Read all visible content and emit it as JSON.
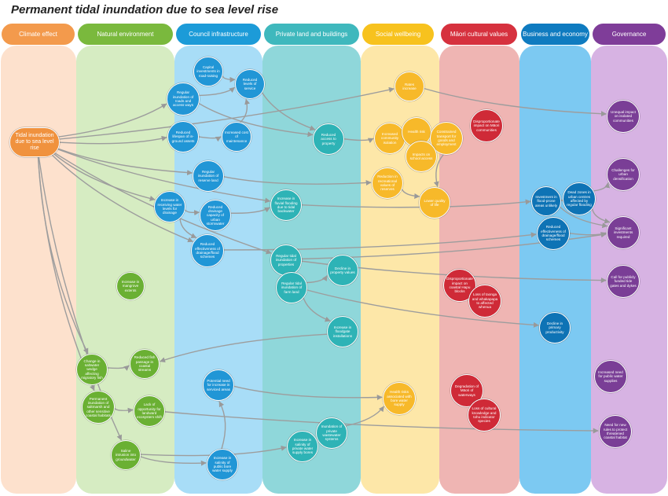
{
  "title": "Permanent tidal inundation due to sea level rise",
  "columns": [
    {
      "key": "climate",
      "label": "Climate effect",
      "header_color": "#f39a4c",
      "band_color": "#fde1cd"
    },
    {
      "key": "natural",
      "label": "Natural environment",
      "header_color": "#7ab93d",
      "band_color": "#d6ecc2"
    },
    {
      "key": "council",
      "label": "Council infrastructure",
      "header_color": "#1c9bd8",
      "band_color": "#a8ddf7"
    },
    {
      "key": "private",
      "label": "Private land and buildings",
      "header_color": "#3fb8bd",
      "band_color": "#8fd7da"
    },
    {
      "key": "social",
      "label": "Social wellbeing",
      "header_color": "#f7c21e",
      "band_color": "#fde7a8"
    },
    {
      "key": "maori",
      "label": "Māori cultural values",
      "header_color": "#d6313e",
      "band_color": "#efb5b3"
    },
    {
      "key": "business",
      "label": "Business and economy",
      "header_color": "#0f7bc0",
      "band_color": "#7cc9f2"
    },
    {
      "key": "governance",
      "label": "Governance",
      "header_color": "#7f3d99",
      "band_color": "#d7b3e3"
    }
  ],
  "node_colors": {
    "climate": "#f0923e",
    "natural": "#6ab033",
    "council": "#2196d6",
    "private": "#2eb3b6",
    "social": "#f7b92a",
    "maori": "#cf2a37",
    "business": "#0e73b5",
    "governance": "#7a3e96"
  },
  "nodes": [
    {
      "id": "tidal",
      "col": "climate",
      "label": "Tidal inundation due to sea level rise"
    },
    {
      "id": "mangrove",
      "col": "natural",
      "label": "Increase in mangrove extents"
    },
    {
      "id": "saltwedge",
      "col": "natural",
      "label": "Change in saltwater wedge affecting migratory fish"
    },
    {
      "id": "fishpassage",
      "col": "natural",
      "label": "Reduced fish passage in coastal streams"
    },
    {
      "id": "saltmarsh",
      "col": "natural",
      "label": "Permanent inundation of saltmarsh and other sensitive coastal habitats"
    },
    {
      "id": "landward",
      "col": "natural",
      "label": "Lack of opportunity for landward ecosystem shift"
    },
    {
      "id": "salineintrusion",
      "col": "natural",
      "label": "Saline intrusion into groundwater"
    },
    {
      "id": "capital",
      "col": "council",
      "label": "Capital investments in road-raising"
    },
    {
      "id": "roads",
      "col": "council",
      "label": "Regular inundation of roads and access ways"
    },
    {
      "id": "levelsservice",
      "col": "council",
      "label": "Reduced levels of service"
    },
    {
      "id": "lifespan",
      "col": "council",
      "label": "Reduced lifespan of in-ground assets"
    },
    {
      "id": "maintenance",
      "col": "council",
      "label": "Increased cost of maintenance"
    },
    {
      "id": "reserve",
      "col": "council",
      "label": "Regular inundation of reserve land"
    },
    {
      "id": "receiving",
      "col": "council",
      "label": "Increase in receiving water levels for drainage"
    },
    {
      "id": "drainagecap",
      "col": "council",
      "label": "Reduced drainage capacity of urban stormwater"
    },
    {
      "id": "effectiveness",
      "col": "council",
      "label": "Reduced effectiveness of drainage/flood schemes"
    },
    {
      "id": "potentialneed",
      "col": "council",
      "label": "Potential need for increase in serviced areas"
    },
    {
      "id": "publicbore",
      "col": "council",
      "label": "Increase in salinity of public bore water supply"
    },
    {
      "id": "fluvial",
      "col": "private",
      "label": "Increase in fluvial flooding due to tidal backwater"
    },
    {
      "id": "access",
      "col": "private",
      "label": "Reduced access to property"
    },
    {
      "id": "regtidal",
      "col": "private",
      "label": "Regular tidal inundation of properties"
    },
    {
      "id": "farmland",
      "col": "private",
      "label": "Regular tidal inundation of farm land"
    },
    {
      "id": "propvalues",
      "col": "private",
      "label": "Decline in property values"
    },
    {
      "id": "floodgate",
      "col": "private",
      "label": "Increase in floodgate installations"
    },
    {
      "id": "privatewater",
      "col": "private",
      "label": "Inundation of private wastewater systems"
    },
    {
      "id": "privatebore",
      "col": "private",
      "label": "Increase in salinity of private water supply bores"
    },
    {
      "id": "rates",
      "col": "social",
      "label": "Rates increase"
    },
    {
      "id": "isolation",
      "col": "social",
      "label": "Increased community isolation"
    },
    {
      "id": "healthrisk",
      "col": "social",
      "label": "Health risk"
    },
    {
      "id": "transport",
      "col": "social",
      "label": "Constrained transport for goods and employment"
    },
    {
      "id": "schoolaccess",
      "col": "social",
      "label": "Impacts on school access"
    },
    {
      "id": "recreational",
      "col": "social",
      "label": "Reduction in recreational values of reserves"
    },
    {
      "id": "quality",
      "col": "social",
      "label": "Lower quality of life"
    },
    {
      "id": "healthrisks2",
      "col": "social",
      "label": "Health risks associated with bore water supply"
    },
    {
      "id": "disprop",
      "col": "maori",
      "label": "Disproportionate impact on Māori communities"
    },
    {
      "id": "hapu",
      "col": "maori",
      "label": "Disproportionate impact on coastal Hapu blocks"
    },
    {
      "id": "taonga",
      "col": "maori",
      "label": "Loss of taonga and whakapapa to affected whenua"
    },
    {
      "id": "degradation",
      "col": "maori",
      "label": "Degradation of Māori of waterways"
    },
    {
      "id": "culturalknowledge",
      "col": "maori",
      "label": "Loss of cultural knowledge and tohu indicator species"
    },
    {
      "id": "floodprone",
      "col": "business",
      "label": "Investment in flood-prone areas unlikely"
    },
    {
      "id": "deadzones",
      "col": "business",
      "label": "Dead zones in urban centres affected by regular flooding"
    },
    {
      "id": "redeffect",
      "col": "business",
      "label": "Reduced effectiveness of drainage/flood schemes"
    },
    {
      "id": "productivity",
      "col": "business",
      "label": "Decline in primary productivity"
    },
    {
      "id": "unequal",
      "col": "governance",
      "label": "Unequal impact on isolated communities"
    },
    {
      "id": "densification",
      "col": "governance",
      "label": "Challenges for urban densification"
    },
    {
      "id": "significant",
      "col": "governance",
      "label": "Significant investments required"
    },
    {
      "id": "callfunding",
      "col": "governance",
      "label": "Call for publicly funded tide gates and dykes"
    },
    {
      "id": "waterneed",
      "col": "governance",
      "label": "Increased need for public water supplies"
    },
    {
      "id": "newrules",
      "col": "governance",
      "label": "Need for new rules to protect threatened coastal habitat"
    }
  ]
}
